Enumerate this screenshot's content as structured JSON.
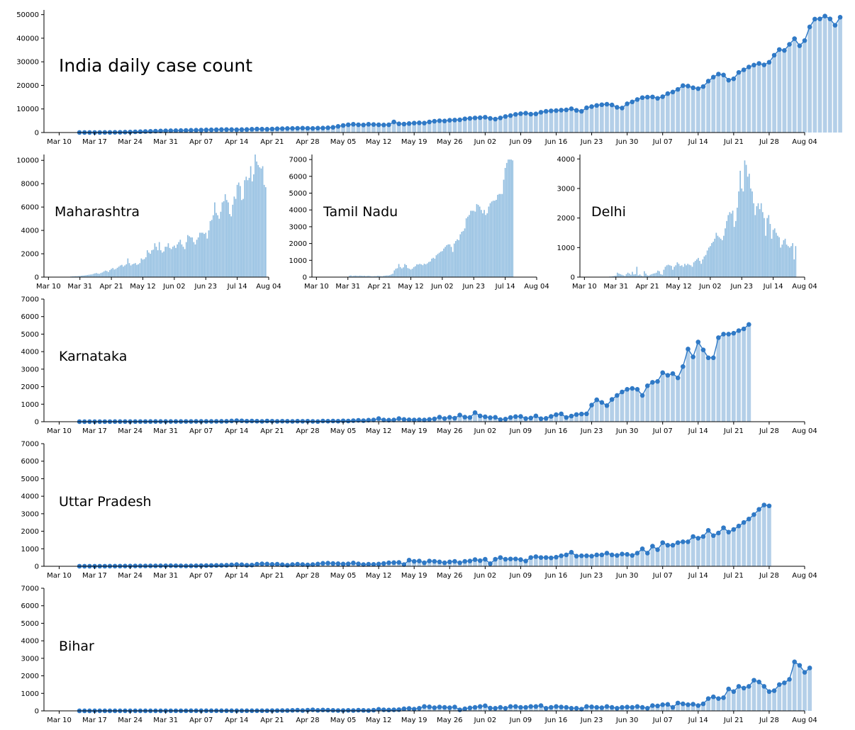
{
  "chart_data": [
    {
      "type": "bar",
      "title": "India daily case count",
      "line_overlay": true,
      "x_range": [
        "2020-03-07",
        "2020-08-04"
      ],
      "x_ticks": [
        "Mar 10",
        "Mar 17",
        "Mar 24",
        "Mar 31",
        "Apr 07",
        "Apr 14",
        "Apr 21",
        "Apr 28",
        "May 05",
        "May 12",
        "May 19",
        "May 26",
        "Jun 02",
        "Jun 09",
        "Jun 16",
        "Jun 23",
        "Jun 30",
        "Jul 07",
        "Jul 14",
        "Jul 21",
        "Jul 28",
        "Aug 04"
      ],
      "ylim": [
        0,
        52000
      ],
      "y_ticks": [
        0,
        10000,
        20000,
        30000,
        40000,
        50000
      ],
      "dates_start": "2020-03-14",
      "values": [
        20,
        15,
        20,
        25,
        35,
        50,
        70,
        90,
        110,
        160,
        220,
        300,
        380,
        450,
        520,
        600,
        680,
        720,
        760,
        800,
        850,
        900,
        950,
        1000,
        1050,
        1100,
        1150,
        1200,
        1250,
        1270,
        1250,
        1200,
        1250,
        1300,
        1400,
        1500,
        1450,
        1400,
        1500,
        1600,
        1650,
        1700,
        1750,
        1800,
        1850,
        1800,
        1750,
        1850,
        1900,
        2000,
        2200,
        2600,
        3000,
        3300,
        3500,
        3300,
        3200,
        3500,
        3400,
        3300,
        3200,
        3300,
        4500,
        3700,
        3600,
        3800,
        4000,
        4100,
        4000,
        4500,
        4800,
        5000,
        4900,
        5200,
        5300,
        5400,
        5800,
        6000,
        6200,
        6300,
        6500,
        6000,
        5700,
        6200,
        6800,
        7200,
        7700,
        8000,
        8200,
        7800,
        7900,
        8600,
        9000,
        9200,
        9300,
        9500,
        9600,
        10100,
        9400,
        9000,
        10500,
        11000,
        11500,
        11800,
        12000,
        11700,
        10700,
        10400,
        12200,
        13000,
        14000,
        14800,
        15000,
        15100,
        14500,
        15200,
        16500,
        17200,
        18300,
        19900,
        19700,
        19000,
        18600,
        19500,
        21800,
        23500,
        24800,
        24400,
        22200,
        22800,
        25500,
        26600,
        27800,
        28600,
        29300,
        28700,
        29800,
        32800,
        35200,
        34800,
        37400,
        39800,
        36800,
        39000,
        44800,
        48100,
        48200,
        49400,
        48200,
        45500,
        48900
      ]
    },
    {
      "type": "bar",
      "title": "Maharashtra",
      "x_range": [
        "2020-03-07",
        "2020-08-04"
      ],
      "x_ticks": [
        "Mar 10",
        "Mar 31",
        "Apr 21",
        "May 12",
        "Jun 02",
        "Jun 23",
        "Jul 14",
        "Aug 04"
      ],
      "ylim": [
        0,
        10500
      ],
      "y_ticks": [
        0,
        2000,
        4000,
        6000,
        8000,
        10000
      ],
      "dates_start": "2020-03-25",
      "values": [
        50,
        60,
        70,
        80,
        80,
        90,
        100,
        120,
        130,
        140,
        160,
        180,
        200,
        220,
        230,
        280,
        320,
        350,
        300,
        280,
        350,
        400,
        480,
        560,
        520,
        440,
        600,
        700,
        780,
        650,
        700,
        800,
        900,
        1000,
        1050,
        900,
        1000,
        1100,
        1600,
        1200,
        1000,
        1100,
        1150,
        1200,
        1050,
        1100,
        1200,
        1600,
        1500,
        1550,
        1700,
        2300,
        2100,
        2000,
        2300,
        2350,
        2900,
        2600,
        2300,
        3000,
        2300,
        2100,
        2200,
        2600,
        2600,
        2900,
        2500,
        2400,
        2600,
        2700,
        2500,
        2800,
        3000,
        3200,
        2800,
        2600,
        2400,
        3000,
        3600,
        3500,
        3400,
        3400,
        3000,
        2800,
        3200,
        3400,
        3800,
        3800,
        3800,
        3700,
        3800,
        3300,
        4000,
        4800,
        4900,
        5300,
        6400,
        5500,
        5300,
        5000,
        5600,
        6400,
        6500,
        7100,
        6600,
        6400,
        5400,
        5200,
        6200,
        6900,
        6700,
        7900,
        8100,
        7800,
        6600,
        6700,
        8300,
        8600,
        8300,
        8500,
        9500,
        8200,
        8800,
        10500,
        9900,
        9600,
        9400,
        9300,
        9500,
        7900,
        7700
      ]
    },
    {
      "type": "bar",
      "title": "Tamil Nadu",
      "x_range": [
        "2020-03-07",
        "2020-08-04"
      ],
      "x_ticks": [
        "Mar 10",
        "Mar 31",
        "Apr 21",
        "May 12",
        "Jun 02",
        "Jun 23",
        "Jul 14",
        "Aug 04"
      ],
      "ylim": [
        0,
        7300
      ],
      "y_ticks": [
        0,
        1000,
        2000,
        3000,
        4000,
        5000,
        6000,
        7000
      ],
      "dates_start": "2020-03-30",
      "values": [
        20,
        20,
        80,
        100,
        60,
        80,
        90,
        80,
        70,
        90,
        80,
        70,
        80,
        60,
        70,
        80,
        60,
        50,
        50,
        60,
        60,
        80,
        70,
        60,
        50,
        80,
        90,
        100,
        100,
        120,
        160,
        200,
        400,
        500,
        530,
        780,
        600,
        520,
        580,
        780,
        720,
        540,
        500,
        450,
        500,
        600,
        650,
        760,
        750,
        790,
        760,
        710,
        800,
        760,
        820,
        900,
        930,
        1100,
        1150,
        1100,
        1300,
        1380,
        1450,
        1520,
        1550,
        1700,
        1800,
        1900,
        1950,
        1950,
        1800,
        1500,
        2000,
        2150,
        2250,
        2200,
        2550,
        2700,
        2750,
        2900,
        3500,
        3600,
        3700,
        3950,
        3950,
        3950,
        3900,
        4350,
        4300,
        4200,
        4000,
        3800,
        4000,
        3700,
        3800,
        4200,
        4400,
        4500,
        4550,
        4550,
        4600,
        4900,
        4950,
        4950,
        4950,
        5800,
        6500,
        6800,
        7000,
        7000,
        7000,
        6950
      ]
    },
    {
      "type": "bar",
      "title": "Delhi",
      "x_range": [
        "2020-03-07",
        "2020-08-04"
      ],
      "x_ticks": [
        "Mar 10",
        "Mar 31",
        "Apr 21",
        "May 12",
        "Jun 02",
        "Jun 23",
        "Jul 14",
        "Aug 04"
      ],
      "ylim": [
        0,
        4150
      ],
      "y_ticks": [
        0,
        1000,
        2000,
        3000,
        4000
      ],
      "dates_start": "2020-03-25",
      "values": [
        10,
        10,
        20,
        20,
        30,
        40,
        50,
        150,
        120,
        100,
        80,
        60,
        40,
        100,
        150,
        120,
        80,
        180,
        90,
        100,
        350,
        60,
        90,
        50,
        30,
        200,
        120,
        60,
        50,
        80,
        100,
        120,
        130,
        150,
        220,
        200,
        100,
        80,
        250,
        350,
        400,
        420,
        400,
        380,
        250,
        350,
        400,
        500,
        450,
        380,
        400,
        350,
        450,
        400,
        450,
        420,
        400,
        350,
        500,
        550,
        600,
        650,
        550,
        450,
        600,
        700,
        750,
        900,
        1000,
        1050,
        1150,
        1200,
        1300,
        1500,
        1400,
        1350,
        1300,
        1250,
        1400,
        1650,
        1900,
        2100,
        2200,
        2150,
        2250,
        1700,
        1900,
        2350,
        2900,
        3600,
        3000,
        2900,
        3950,
        3800,
        3400,
        3500,
        3000,
        2900,
        2500,
        2100,
        2400,
        2500,
        2300,
        2500,
        2200,
        2000,
        1400,
        2000,
        2100,
        1800,
        1300,
        1600,
        1650,
        1500,
        1400,
        1350,
        1000,
        1100,
        1250,
        1300,
        1100,
        1050,
        1000,
        1050,
        1150,
        600,
        1050
      ]
    },
    {
      "type": "bar",
      "title": "Karnataka",
      "line_overlay": true,
      "x_range": [
        "2020-03-07",
        "2020-08-04"
      ],
      "x_ticks": [
        "Mar 10",
        "Mar 17",
        "Mar 24",
        "Mar 31",
        "Apr 07",
        "Apr 14",
        "Apr 21",
        "Apr 28",
        "May 05",
        "May 12",
        "May 19",
        "May 26",
        "Jun 02",
        "Jun 09",
        "Jun 16",
        "Jun 23",
        "Jun 30",
        "Jul 07",
        "Jul 14",
        "Jul 21",
        "Jul 28",
        "Aug 04"
      ],
      "ylim": [
        0,
        7000
      ],
      "y_ticks": [
        0,
        1000,
        2000,
        3000,
        4000,
        5000,
        6000,
        7000
      ],
      "dates_start": "2020-03-14",
      "values": [
        2,
        2,
        3,
        3,
        4,
        5,
        5,
        6,
        7,
        8,
        8,
        9,
        10,
        10,
        11,
        12,
        12,
        13,
        13,
        14,
        14,
        15,
        15,
        16,
        17,
        18,
        19,
        20,
        21,
        22,
        44,
        60,
        50,
        30,
        40,
        30,
        20,
        40,
        30,
        20,
        30,
        25,
        20,
        30,
        25,
        30,
        20,
        10,
        40,
        30,
        40,
        30,
        50,
        40,
        60,
        80,
        60,
        90,
        100,
        180,
        100,
        90,
        100,
        180,
        130,
        110,
        100,
        110,
        100,
        130,
        160,
        260,
        180,
        250,
        200,
        380,
        260,
        240,
        520,
        330,
        280,
        230,
        250,
        120,
        150,
        240,
        290,
        300,
        180,
        210,
        330,
        170,
        190,
        300,
        400,
        450,
        240,
        320,
        410,
        440,
        450,
        950,
        1250,
        1100,
        920,
        1270,
        1500,
        1700,
        1850,
        1900,
        1850,
        1500,
        2050,
        2250,
        2300,
        2800,
        2650,
        2750,
        2500,
        3150,
        4150,
        3700,
        4550,
        4100,
        3650,
        3650,
        4800,
        5000,
        5000,
        5050,
        5200,
        5300,
        5550
      ]
    },
    {
      "type": "bar",
      "title": "Uttar Pradesh",
      "line_overlay": true,
      "x_range": [
        "2020-03-07",
        "2020-08-04"
      ],
      "x_ticks": [
        "Mar 10",
        "Mar 17",
        "Mar 24",
        "Mar 31",
        "Apr 07",
        "Apr 14",
        "Apr 21",
        "Apr 28",
        "May 05",
        "May 12",
        "May 19",
        "May 26",
        "Jun 02",
        "Jun 09",
        "Jun 16",
        "Jun 23",
        "Jun 30",
        "Jul 07",
        "Jul 14",
        "Jul 21",
        "Jul 28",
        "Aug 04"
      ],
      "ylim": [
        0,
        7000
      ],
      "y_ticks": [
        0,
        1000,
        2000,
        3000,
        4000,
        5000,
        6000,
        7000
      ],
      "dates_start": "2020-03-14",
      "values": [
        2,
        3,
        3,
        4,
        5,
        5,
        6,
        8,
        10,
        12,
        14,
        16,
        18,
        20,
        22,
        25,
        28,
        30,
        32,
        30,
        25,
        20,
        25,
        30,
        35,
        40,
        45,
        50,
        55,
        60,
        80,
        100,
        90,
        60,
        70,
        120,
        140,
        130,
        110,
        120,
        90,
        60,
        100,
        120,
        100,
        80,
        100,
        130,
        170,
        180,
        160,
        150,
        130,
        140,
        190,
        140,
        100,
        120,
        110,
        130,
        160,
        200,
        210,
        220,
        100,
        350,
        280,
        300,
        200,
        300,
        280,
        250,
        200,
        250,
        280,
        200,
        280,
        300,
        380,
        320,
        400,
        150,
        400,
        500,
        400,
        420,
        420,
        380,
        300,
        500,
        550,
        500,
        500,
        480,
        520,
        600,
        650,
        800,
        580,
        600,
        600,
        580,
        650,
        650,
        750,
        650,
        620,
        700,
        680,
        620,
        750,
        1000,
        750,
        1150,
        950,
        1350,
        1200,
        1200,
        1350,
        1400,
        1400,
        1700,
        1600,
        1700,
        2050,
        1750,
        1900,
        2200,
        1950,
        2100,
        2300,
        2500,
        2700,
        2950,
        3250,
        3500,
        3450
      ]
    },
    {
      "type": "bar",
      "title": "Bihar",
      "line_overlay": true,
      "x_range": [
        "2020-03-07",
        "2020-08-04"
      ],
      "x_ticks": [
        "Mar 10",
        "Mar 17",
        "Mar 24",
        "Mar 31",
        "Apr 07",
        "Apr 14",
        "Apr 21",
        "Apr 28",
        "May 05",
        "May 12",
        "May 19",
        "May 26",
        "Jun 02",
        "Jun 09",
        "Jun 16",
        "Jun 23",
        "Jun 30",
        "Jul 07",
        "Jul 14",
        "Jul 21",
        "Jul 28",
        "Aug 04"
      ],
      "ylim": [
        0,
        7000
      ],
      "y_ticks": [
        0,
        1000,
        2000,
        3000,
        4000,
        5000,
        6000,
        7000
      ],
      "dates_start": "2020-03-14",
      "values": [
        1,
        1,
        1,
        2,
        2,
        2,
        2,
        2,
        3,
        3,
        3,
        3,
        3,
        4,
        4,
        4,
        4,
        5,
        5,
        5,
        5,
        5,
        6,
        6,
        6,
        6,
        7,
        7,
        7,
        8,
        8,
        8,
        8,
        9,
        9,
        9,
        10,
        10,
        15,
        15,
        20,
        20,
        30,
        40,
        20,
        40,
        60,
        30,
        50,
        40,
        30,
        20,
        20,
        30,
        20,
        40,
        30,
        20,
        40,
        90,
        60,
        50,
        60,
        70,
        120,
        140,
        100,
        150,
        250,
        230,
        180,
        220,
        200,
        180,
        220,
        60,
        120,
        170,
        200,
        250,
        290,
        160,
        150,
        200,
        150,
        250,
        250,
        200,
        200,
        250,
        250,
        300,
        150,
        200,
        250,
        220,
        200,
        150,
        150,
        100,
        250,
        230,
        200,
        180,
        250,
        200,
        150,
        200,
        220,
        200,
        250,
        200,
        150,
        300,
        280,
        350,
        370,
        200,
        450,
        400,
        350,
        380,
        300,
        400,
        700,
        800,
        700,
        750,
        1250,
        1100,
        1400,
        1300,
        1400,
        1750,
        1650,
        1400,
        1100,
        1150,
        1500,
        1600,
        1800,
        2800,
        2600,
        2200,
        2450
      ]
    }
  ]
}
